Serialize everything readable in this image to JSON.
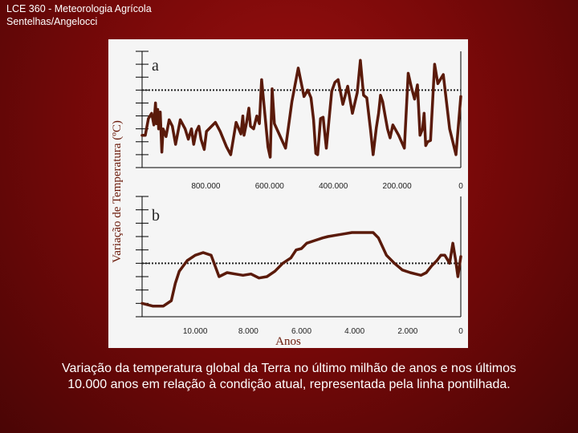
{
  "header": {
    "line1": "LCE 360 - Meteorologia Agrícola",
    "line2": "Sentelhas/Angelocci"
  },
  "caption": {
    "line1": "Variação da temperatura global da Terra no último milhão de anos e nos últimos",
    "line2": "10.000 anos em relação à condição atual, representada pela linha pontilhada."
  },
  "ylabel": "Variação de Temperatura (ºC)",
  "xlabel": "Anos",
  "colors": {
    "line": "#5a1a0a",
    "axis": "#000000",
    "background": "#f5f5f5"
  },
  "chart_data": [
    {
      "type": "line",
      "panel_label": "a",
      "xlim": [
        1000000,
        0
      ],
      "ylim": [
        0,
        9
      ],
      "reference_line": 6,
      "x_tick_labels": [
        "800.000",
        "600.000",
        "400.000",
        "200.000",
        "0"
      ],
      "x_tick_values": [
        800000,
        600000,
        400000,
        200000,
        0
      ],
      "x": [
        1000000,
        990000,
        980000,
        970000,
        963000,
        958000,
        955000,
        951000,
        948000,
        943000,
        938000,
        934000,
        925000,
        915000,
        905000,
        895000,
        880000,
        865000,
        855000,
        845000,
        838000,
        830000,
        822000,
        815000,
        805000,
        798000,
        770000,
        755000,
        735000,
        722000,
        705000,
        690000,
        684000,
        680000,
        672000,
        665000,
        660000,
        650000,
        640000,
        632000,
        625000,
        605000,
        598000,
        592000,
        585000,
        570000,
        550000,
        530000,
        510000,
        492000,
        480000,
        470000,
        462000,
        455000,
        449000,
        440000,
        432000,
        422000,
        405000,
        395000,
        385000,
        370000,
        355000,
        340000,
        325000,
        315000,
        305000,
        295000,
        283000,
        275000,
        265000,
        258000,
        252000,
        245000,
        238000,
        230000,
        222000,
        213000,
        195000,
        177000,
        165000,
        155000,
        145000,
        136000,
        128000,
        120000,
        115000,
        110000,
        104000,
        95000,
        82000,
        72000,
        55000,
        35000,
        15000,
        0
      ],
      "y": [
        2.5,
        2.5,
        3.8,
        4.2,
        3.3,
        5.0,
        3.4,
        4.5,
        3.0,
        4.3,
        1.2,
        3.0,
        2.4,
        3.7,
        3.2,
        1.8,
        3.7,
        3.0,
        2.2,
        3.0,
        1.8,
        2.8,
        3.2,
        2.2,
        1.4,
        2.8,
        3.5,
        2.8,
        1.6,
        1.0,
        3.5,
        2.6,
        4.0,
        2.5,
        3.5,
        4.6,
        3.2,
        3.0,
        4.0,
        3.4,
        6.8,
        1.6,
        0.8,
        6.1,
        3.4,
        2.6,
        1.5,
        5.1,
        7.7,
        5.5,
        6.0,
        5.4,
        3.7,
        1.1,
        1.0,
        3.8,
        3.9,
        1.5,
        5.9,
        6.6,
        6.8,
        4.9,
        6.3,
        4.2,
        5.8,
        8.3,
        5.6,
        5.4,
        2.9,
        1.0,
        3.1,
        4.2,
        5.6,
        5.1,
        4.1,
        3.0,
        2.3,
        3.3,
        2.5,
        1.5,
        7.3,
        6.2,
        5.3,
        6.4,
        2.5,
        3.0,
        4.2,
        1.7,
        2.0,
        2.1,
        8.0,
        6.5,
        7.2,
        3.0,
        1.0,
        5.5
      ]
    },
    {
      "type": "line",
      "panel_label": "b",
      "xlim": [
        12000,
        0
      ],
      "ylim": [
        0,
        9
      ],
      "reference_line": 4,
      "x_tick_labels": [
        "10.000",
        "8.000",
        "6.000",
        "4.000",
        "2.000",
        "0"
      ],
      "x_tick_values": [
        10000,
        8000,
        6000,
        4000,
        2000,
        0
      ],
      "x": [
        12000,
        11600,
        11200,
        10900,
        10750,
        10600,
        10300,
        10000,
        9700,
        9400,
        9100,
        8800,
        8500,
        8200,
        7900,
        7600,
        7300,
        7000,
        6700,
        6400,
        6200,
        6000,
        5800,
        5500,
        5200,
        5000,
        4700,
        4400,
        4100,
        3900,
        3700,
        3500,
        3300,
        3100,
        2800,
        2500,
        2200,
        1900,
        1700,
        1500,
        1300,
        1100,
        900,
        750,
        600,
        420,
        300,
        200,
        110,
        0
      ],
      "y": [
        1.0,
        0.8,
        0.8,
        1.2,
        2.5,
        3.4,
        4.2,
        4.6,
        4.8,
        4.6,
        3.0,
        3.3,
        3.2,
        3.1,
        3.2,
        2.9,
        3.0,
        3.4,
        4.0,
        4.4,
        5.0,
        5.1,
        5.5,
        5.7,
        5.9,
        6.0,
        6.1,
        6.2,
        6.3,
        6.3,
        6.3,
        6.3,
        6.3,
        5.9,
        4.6,
        4.0,
        3.5,
        3.3,
        3.2,
        3.1,
        3.3,
        3.8,
        4.2,
        4.6,
        4.6,
        4.0,
        5.5,
        4.3,
        3.0,
        4.5
      ]
    }
  ]
}
